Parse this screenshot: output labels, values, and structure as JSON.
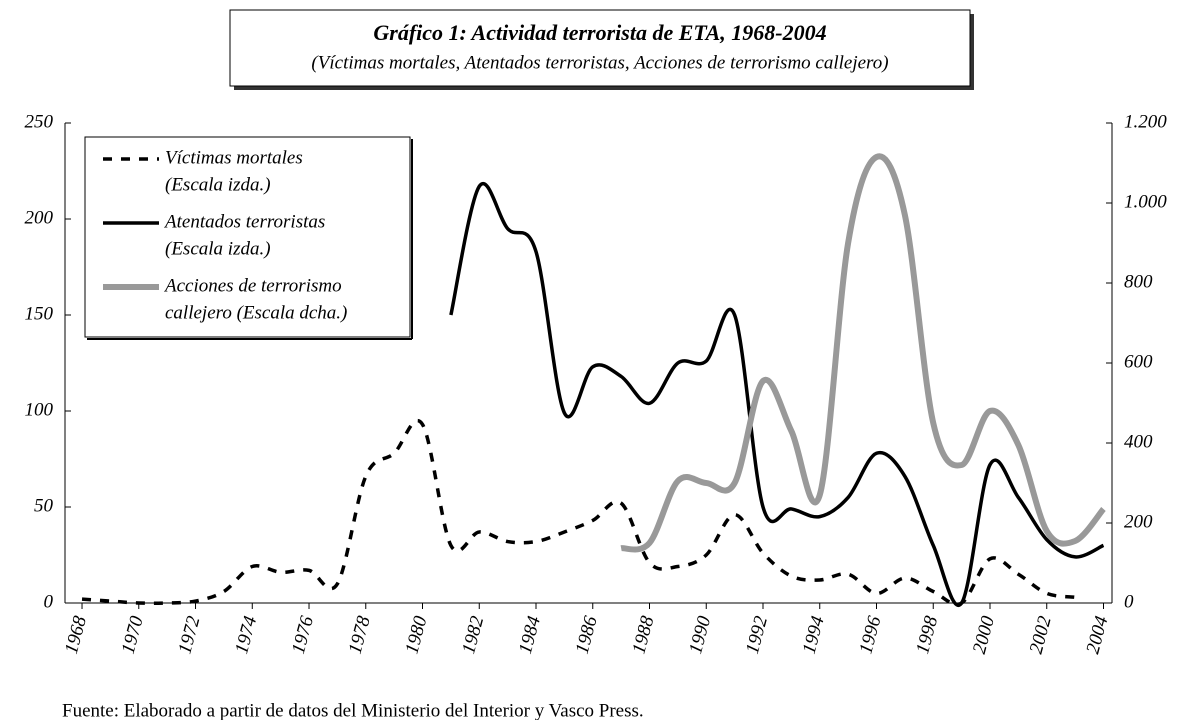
{
  "chart_data": {
    "type": "line",
    "title": "Gráfico 1: Actividad terrorista de ETA, 1968-2004",
    "subtitle": "(Víctimas mortales, Atentados terroristas, Acciones de terrorismo callejero)",
    "source": "Fuente: Elaborado a partir de datos del Ministerio del Interior y Vasco Press.",
    "x": [
      1968,
      1969,
      1970,
      1971,
      1972,
      1973,
      1974,
      1975,
      1976,
      1977,
      1978,
      1979,
      1980,
      1981,
      1982,
      1983,
      1984,
      1985,
      1986,
      1987,
      1988,
      1989,
      1990,
      1991,
      1992,
      1993,
      1994,
      1995,
      1996,
      1997,
      1998,
      1999,
      2000,
      2001,
      2002,
      2003,
      2004
    ],
    "xlim": [
      1967.4,
      2004.3
    ],
    "xticks": [
      1968,
      1970,
      1972,
      1974,
      1976,
      1978,
      1980,
      1982,
      1984,
      1986,
      1988,
      1990,
      1992,
      1994,
      1996,
      1998,
      2000,
      2002,
      2004
    ],
    "ylim": [
      0,
      250
    ],
    "yticks": [
      0,
      50,
      100,
      150,
      200,
      250
    ],
    "y2lim": [
      0,
      1200
    ],
    "y2ticks": [
      0,
      200,
      400,
      600,
      800,
      {
        "value": 1000,
        "label": "1.000"
      },
      {
        "value": 1200,
        "label": "1.200"
      }
    ],
    "series": [
      {
        "name": [
          "Víctimas mortales",
          "(Escala izda.)"
        ],
        "color": "#000000",
        "style": "dashed",
        "values": [
          2,
          1,
          0,
          0,
          1,
          6,
          19,
          16,
          17,
          10,
          66,
          78,
          93,
          30,
          37,
          32,
          32,
          37,
          43,
          52,
          21,
          19,
          25,
          46,
          26,
          14,
          12,
          15,
          5,
          13,
          6,
          0,
          23,
          15,
          5,
          3,
          null
        ]
      },
      {
        "name": [
          "Atentados terroristas",
          "(Escala izda.)"
        ],
        "color": "#000000",
        "style": "solid",
        "values": [
          null,
          null,
          null,
          null,
          null,
          null,
          null,
          null,
          null,
          null,
          null,
          null,
          null,
          150,
          217,
          195,
          183,
          99,
          123,
          118,
          104,
          125,
          126,
          150,
          50,
          49,
          45,
          55,
          78,
          66,
          30,
          0,
          72,
          55,
          33,
          24,
          30
        ]
      },
      {
        "name": [
          "Acciones de terrorismo",
          "callejero (Escala dcha.)"
        ],
        "color": "#999999",
        "style": "solid",
        "axis": "y2",
        "values": [
          null,
          null,
          null,
          null,
          null,
          null,
          null,
          null,
          null,
          null,
          null,
          null,
          null,
          null,
          null,
          null,
          null,
          null,
          null,
          137,
          150,
          305,
          300,
          300,
          555,
          430,
          270,
          900,
          1115,
          970,
          450,
          345,
          480,
          395,
          180,
          155,
          235
        ]
      }
    ],
    "legend": "upper left"
  }
}
